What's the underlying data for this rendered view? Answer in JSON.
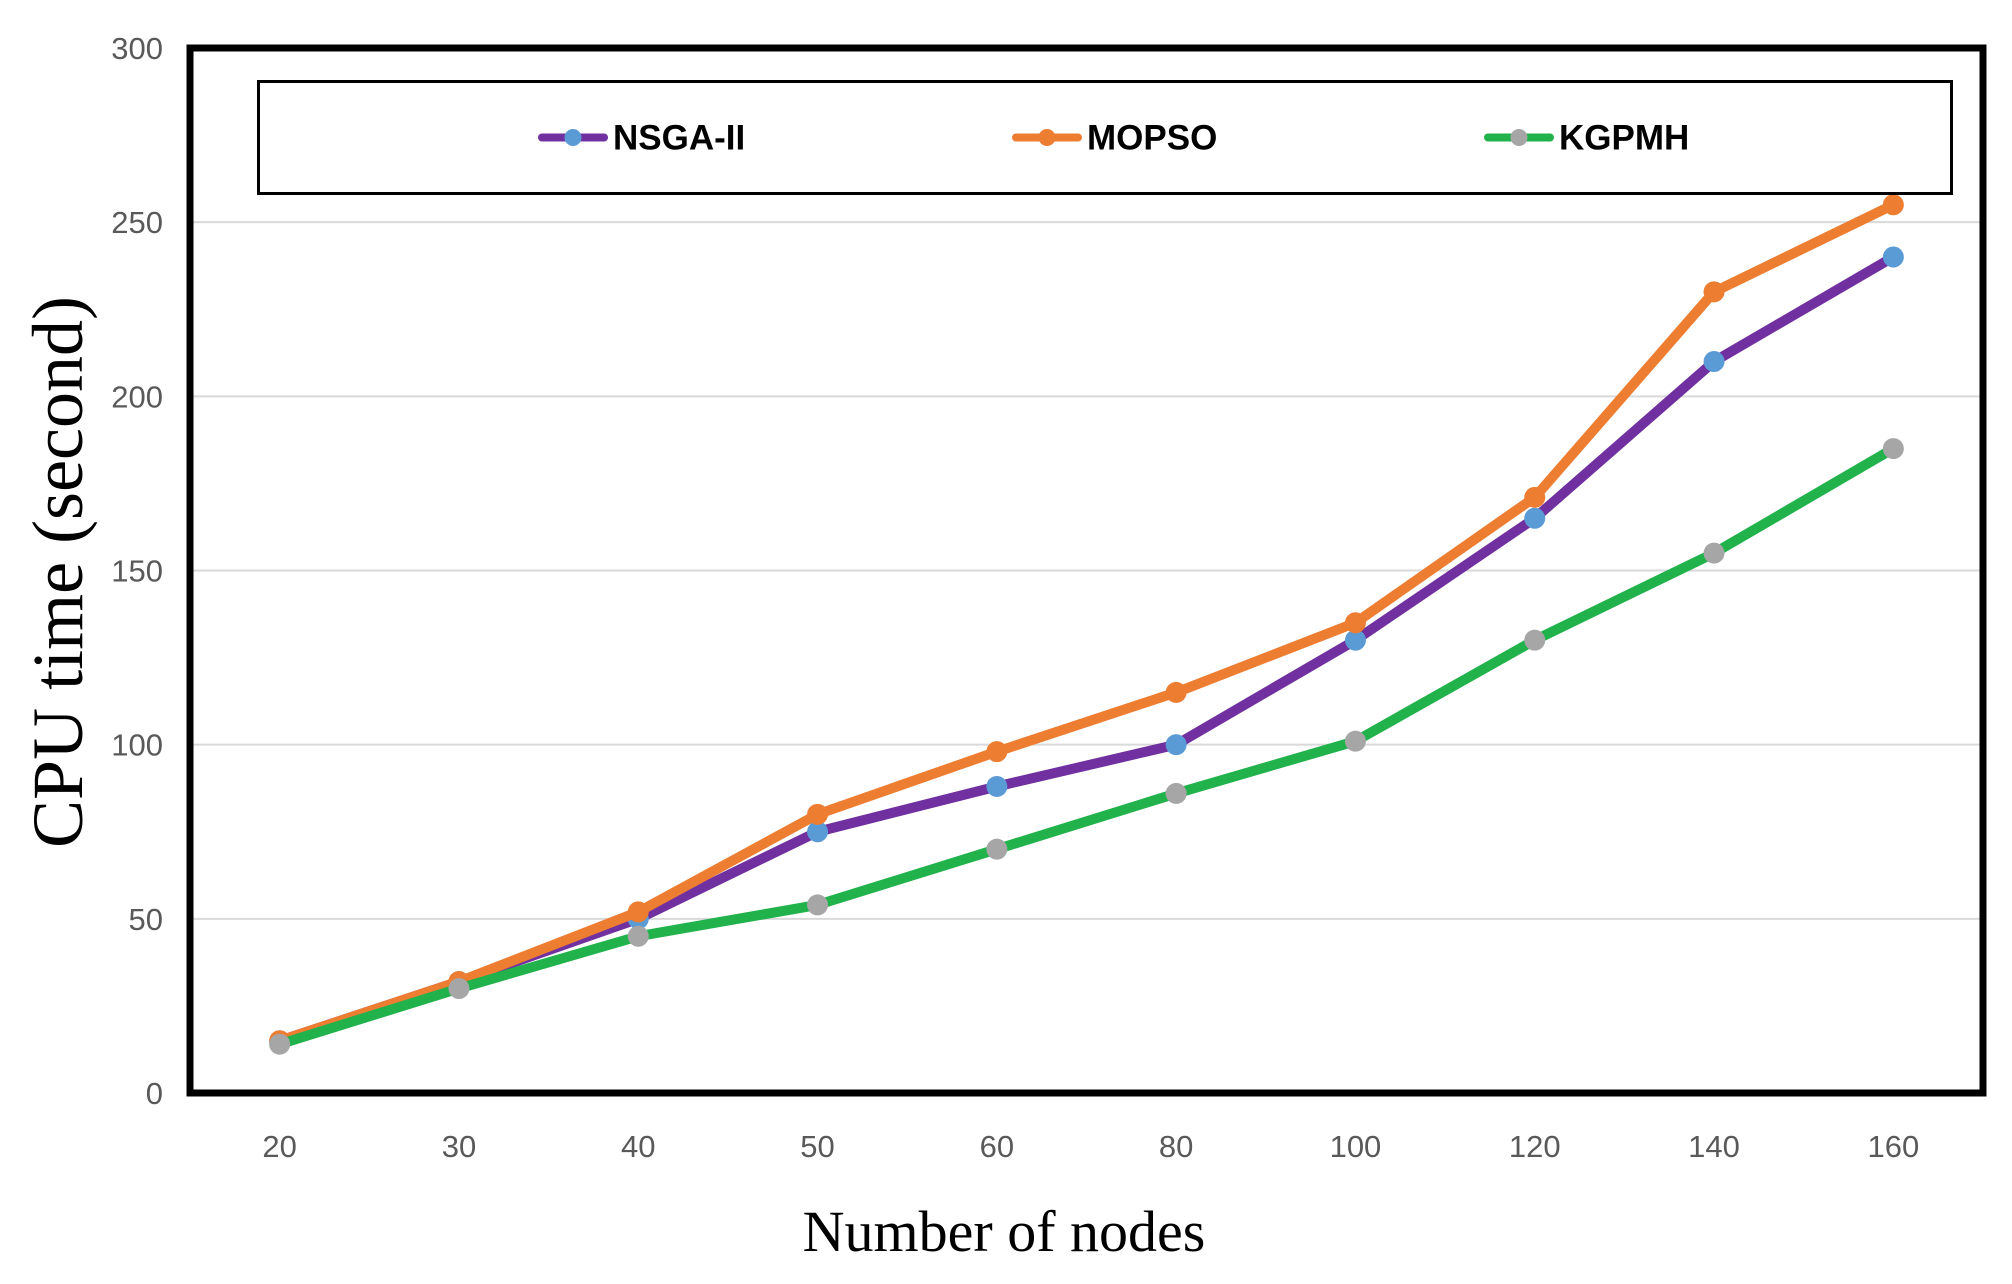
{
  "chart_data": {
    "type": "line",
    "title": "",
    "xlabel": "Number of nodes",
    "ylabel": "CPU time (second)",
    "categories": [
      "20",
      "30",
      "40",
      "50",
      "60",
      "80",
      "100",
      "120",
      "140",
      "160"
    ],
    "series": [
      {
        "name": "NSGA-II",
        "values": [
          15,
          32,
          50,
          75,
          88,
          100,
          130,
          165,
          210,
          240
        ],
        "line_color": "#7030A0",
        "marker_color": "#5B9BD5"
      },
      {
        "name": "MOPSO",
        "values": [
          15,
          32,
          52,
          80,
          98,
          115,
          135,
          171,
          230,
          255
        ],
        "line_color": "#ED7D31",
        "marker_color": "#ED7D31"
      },
      {
        "name": "KGPMH",
        "values": [
          14,
          30,
          45,
          54,
          70,
          86,
          101,
          130,
          155,
          185
        ],
        "line_color": "#21B24C",
        "marker_color": "#A6A6A6"
      }
    ],
    "ylim": [
      0,
      300
    ],
    "y_ticks": [
      0,
      50,
      100,
      150,
      200,
      250,
      300
    ],
    "grid": true,
    "legend_position": "top-inside",
    "colors": {
      "gridline": "#D9D9D9",
      "tick_label": "#595959",
      "axis_frame": "#000000",
      "background": "#FFFFFF"
    }
  }
}
